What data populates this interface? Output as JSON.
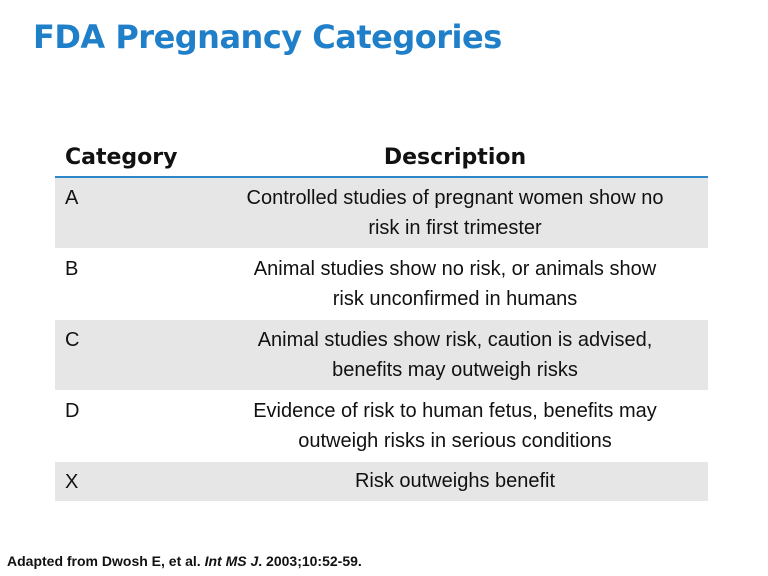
{
  "slide": {
    "title": "FDA Pregnancy Categories"
  },
  "table": {
    "headers": {
      "category": "Category",
      "description": "Description"
    },
    "rows": [
      {
        "category": "A",
        "description_lines": [
          "Controlled studies of pregnant women show no",
          "risk in first trimester"
        ]
      },
      {
        "category": "B",
        "description_lines": [
          "Animal studies show no risk, or animals show",
          "risk unconfirmed in humans"
        ]
      },
      {
        "category": "C",
        "description_lines": [
          "Animal studies show risk, caution is advised,",
          "benefits may outweigh risks"
        ]
      },
      {
        "category": "D",
        "description_lines": [
          "Evidence of risk to human fetus, benefits may",
          "outweigh risks in serious conditions"
        ]
      },
      {
        "category": "X",
        "description_lines": [
          "Risk outweighs benefit"
        ]
      }
    ]
  },
  "footer": {
    "source_prefix": "Adapted from Dwosh E, et al. ",
    "journal": "Int MS J",
    "source_suffix": ". 2003;10:52-59."
  },
  "colors": {
    "title": "#1f7fc9",
    "header_rule": "#2e87c8",
    "row_shade": "#e6e6e6"
  }
}
